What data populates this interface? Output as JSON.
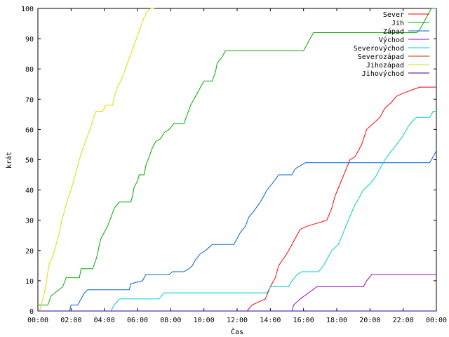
{
  "chart_data": {
    "type": "line",
    "xlabel": "Čas",
    "ylabel": "krát",
    "xlim": [
      0,
      24
    ],
    "ylim": [
      0,
      100
    ],
    "x_ticks": [
      {
        "value": 0,
        "label": "00:00"
      },
      {
        "value": 2,
        "label": "02:00"
      },
      {
        "value": 4,
        "label": "04:00"
      },
      {
        "value": 6,
        "label": "06:00"
      },
      {
        "value": 8,
        "label": "08:00"
      },
      {
        "value": 10,
        "label": "10:00"
      },
      {
        "value": 12,
        "label": "12:00"
      },
      {
        "value": 14,
        "label": "14:00"
      },
      {
        "value": 16,
        "label": "16:00"
      },
      {
        "value": 18,
        "label": "18:00"
      },
      {
        "value": 20,
        "label": "20:00"
      },
      {
        "value": 22,
        "label": "22:00"
      },
      {
        "value": 24,
        "label": "00:00"
      }
    ],
    "y_ticks": [
      0,
      10,
      20,
      30,
      40,
      50,
      60,
      70,
      80,
      90,
      100
    ],
    "grid": false,
    "legend_position": "top-right",
    "series": [
      {
        "name": "Sever",
        "color": "#ff0000",
        "points": [
          [
            12.6,
            0
          ],
          [
            12.9,
            2
          ],
          [
            13.7,
            4
          ],
          [
            14.0,
            8
          ],
          [
            14.3,
            11
          ],
          [
            14.5,
            15
          ],
          [
            15.0,
            19
          ],
          [
            15.3,
            22
          ],
          [
            15.5,
            24
          ],
          [
            15.8,
            27
          ],
          [
            16.2,
            28
          ],
          [
            17.4,
            30
          ],
          [
            17.7,
            34
          ],
          [
            17.9,
            38
          ],
          [
            18.2,
            42
          ],
          [
            18.5,
            46
          ],
          [
            18.8,
            50
          ],
          [
            19.1,
            51
          ],
          [
            19.5,
            55
          ],
          [
            19.8,
            60
          ],
          [
            20.2,
            62
          ],
          [
            20.6,
            64
          ],
          [
            20.9,
            67
          ],
          [
            21.3,
            69
          ],
          [
            21.6,
            71
          ],
          [
            22.0,
            72
          ],
          [
            22.5,
            73
          ],
          [
            23.0,
            74
          ],
          [
            24.0,
            74
          ]
        ]
      },
      {
        "name": "Jih",
        "color": "#00aa00",
        "points": [
          [
            0,
            2
          ],
          [
            0.6,
            2
          ],
          [
            0.8,
            5
          ],
          [
            1.5,
            8
          ],
          [
            1.7,
            11
          ],
          [
            2.5,
            11
          ],
          [
            2.6,
            14
          ],
          [
            3.3,
            14
          ],
          [
            3.5,
            17
          ],
          [
            3.6,
            19
          ],
          [
            3.7,
            22
          ],
          [
            3.8,
            24
          ],
          [
            4.0,
            26
          ],
          [
            4.2,
            28
          ],
          [
            4.4,
            31
          ],
          [
            4.6,
            34
          ],
          [
            4.9,
            36
          ],
          [
            5.6,
            36
          ],
          [
            5.7,
            38
          ],
          [
            5.8,
            41
          ],
          [
            6.0,
            43
          ],
          [
            6.1,
            45
          ],
          [
            6.4,
            45
          ],
          [
            6.5,
            48
          ],
          [
            6.7,
            51
          ],
          [
            6.9,
            54
          ],
          [
            7.1,
            56
          ],
          [
            7.4,
            57
          ],
          [
            7.6,
            59
          ],
          [
            7.9,
            60
          ],
          [
            8.2,
            62
          ],
          [
            8.8,
            62
          ],
          [
            9.0,
            65
          ],
          [
            9.2,
            68
          ],
          [
            9.4,
            70
          ],
          [
            9.6,
            72
          ],
          [
            9.8,
            74
          ],
          [
            10.0,
            76
          ],
          [
            10.5,
            76
          ],
          [
            10.7,
            79
          ],
          [
            10.8,
            82
          ],
          [
            11.1,
            84
          ],
          [
            11.3,
            86
          ],
          [
            16.0,
            86
          ],
          [
            16.2,
            88
          ],
          [
            16.4,
            90
          ],
          [
            16.6,
            92
          ],
          [
            22.8,
            92
          ],
          [
            23.0,
            93
          ],
          [
            23.2,
            95
          ],
          [
            23.4,
            97
          ],
          [
            23.6,
            99
          ],
          [
            23.7,
            100
          ],
          [
            24.0,
            100
          ]
        ]
      },
      {
        "name": "Západ",
        "color": "#0066cc",
        "points": [
          [
            1.9,
            0
          ],
          [
            2.0,
            2
          ],
          [
            2.4,
            2
          ],
          [
            2.6,
            4
          ],
          [
            2.8,
            6
          ],
          [
            3.0,
            7
          ],
          [
            5.5,
            7
          ],
          [
            5.6,
            9
          ],
          [
            6.3,
            10
          ],
          [
            6.5,
            12
          ],
          [
            7.9,
            12
          ],
          [
            8.1,
            13
          ],
          [
            8.8,
            13
          ],
          [
            9.1,
            14
          ],
          [
            9.3,
            15
          ],
          [
            9.5,
            17
          ],
          [
            9.8,
            19
          ],
          [
            10.1,
            20
          ],
          [
            10.5,
            22
          ],
          [
            11.8,
            22
          ],
          [
            12.0,
            24
          ],
          [
            12.2,
            26
          ],
          [
            12.5,
            28
          ],
          [
            12.7,
            31
          ],
          [
            13.0,
            33
          ],
          [
            13.4,
            36
          ],
          [
            13.6,
            38
          ],
          [
            13.8,
            40
          ],
          [
            14.1,
            42
          ],
          [
            14.5,
            45
          ],
          [
            15.3,
            45
          ],
          [
            15.5,
            47
          ],
          [
            15.8,
            48
          ],
          [
            16.1,
            49
          ],
          [
            23.6,
            49
          ],
          [
            23.8,
            51
          ],
          [
            24.0,
            53
          ]
        ]
      },
      {
        "name": "Východ",
        "color": "#9900cc",
        "points": [
          [
            15.3,
            0
          ],
          [
            15.4,
            2
          ],
          [
            15.8,
            4
          ],
          [
            16.3,
            6
          ],
          [
            16.8,
            8
          ],
          [
            17.3,
            8
          ],
          [
            17.8,
            8
          ],
          [
            19.6,
            8
          ],
          [
            19.8,
            10
          ],
          [
            20.1,
            12
          ],
          [
            24.0,
            12
          ]
        ]
      },
      {
        "name": "Severovýchod",
        "color": "#00cccc",
        "points": [
          [
            4.4,
            0
          ],
          [
            4.6,
            2
          ],
          [
            4.9,
            4
          ],
          [
            7.3,
            4
          ],
          [
            7.6,
            6
          ],
          [
            13.8,
            6
          ],
          [
            14.0,
            8
          ],
          [
            15.1,
            8
          ],
          [
            15.3,
            10
          ],
          [
            15.6,
            12
          ],
          [
            15.9,
            13
          ],
          [
            16.9,
            13
          ],
          [
            17.2,
            15
          ],
          [
            17.4,
            17
          ],
          [
            17.7,
            20
          ],
          [
            18.1,
            22
          ],
          [
            18.4,
            26
          ],
          [
            18.7,
            30
          ],
          [
            19.0,
            34
          ],
          [
            19.3,
            37
          ],
          [
            19.6,
            40
          ],
          [
            20.0,
            42
          ],
          [
            20.3,
            44
          ],
          [
            20.6,
            47
          ],
          [
            20.9,
            50
          ],
          [
            21.3,
            53
          ],
          [
            21.6,
            55
          ],
          [
            22.0,
            58
          ],
          [
            22.3,
            61
          ],
          [
            22.6,
            63
          ],
          [
            22.8,
            64
          ],
          [
            23.6,
            64
          ],
          [
            23.8,
            66
          ],
          [
            24.0,
            66
          ]
        ]
      },
      {
        "name": "Severozápad",
        "color": "#cc3300",
        "points": [
          [
            0,
            0
          ],
          [
            24.0,
            0
          ]
        ]
      },
      {
        "name": "Jihozápad",
        "color": "#dddd00",
        "points": [
          [
            0.1,
            0
          ],
          [
            0.2,
            2
          ],
          [
            0.35,
            5
          ],
          [
            0.5,
            9
          ],
          [
            0.6,
            13
          ],
          [
            0.7,
            16
          ],
          [
            0.9,
            18
          ],
          [
            1.1,
            22
          ],
          [
            1.3,
            26
          ],
          [
            1.4,
            29
          ],
          [
            1.6,
            33
          ],
          [
            1.8,
            37
          ],
          [
            2.0,
            40
          ],
          [
            2.2,
            44
          ],
          [
            2.4,
            48
          ],
          [
            2.6,
            52
          ],
          [
            2.8,
            55
          ],
          [
            3.0,
            58
          ],
          [
            3.2,
            61
          ],
          [
            3.3,
            63
          ],
          [
            3.5,
            66
          ],
          [
            3.9,
            66
          ],
          [
            4.1,
            68
          ],
          [
            4.5,
            68
          ],
          [
            4.6,
            71
          ],
          [
            4.8,
            74
          ],
          [
            5.0,
            76
          ],
          [
            5.2,
            79
          ],
          [
            5.4,
            82
          ],
          [
            5.6,
            85
          ],
          [
            5.8,
            88
          ],
          [
            6.0,
            91
          ],
          [
            6.2,
            94
          ],
          [
            6.4,
            97
          ],
          [
            6.6,
            99
          ],
          [
            6.8,
            100
          ],
          [
            7.0,
            100
          ]
        ]
      },
      {
        "name": "Jihovýchod",
        "color": "#330099",
        "points": [
          [
            0,
            0
          ],
          [
            24.0,
            0
          ]
        ]
      }
    ]
  }
}
